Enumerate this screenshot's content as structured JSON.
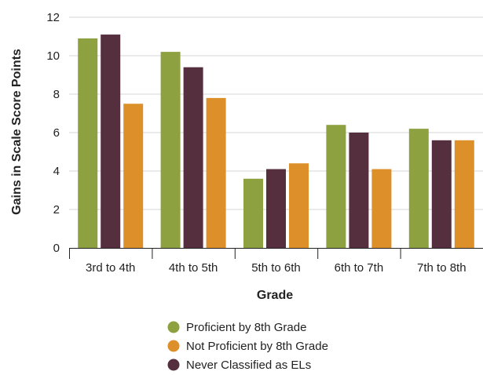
{
  "chart_data": {
    "type": "bar",
    "title": "",
    "xlabel": "Grade",
    "ylabel": "Gains in Scale Score Points",
    "ylim": [
      0,
      12
    ],
    "yticks": [
      0,
      2,
      4,
      6,
      8,
      10,
      12
    ],
    "grid": "horizontal",
    "legend_position": "bottom",
    "categories": [
      "3rd to 4th",
      "4th to 5th",
      "5th to 6th",
      "6th to 7th",
      "7th to 8th"
    ],
    "series": [
      {
        "name": "Proficient by 8th Grade",
        "color": "#8da141",
        "values": [
          10.9,
          10.2,
          3.6,
          6.4,
          6.2
        ]
      },
      {
        "name": "Never Classified as ELs",
        "color": "#552f3e",
        "values": [
          11.1,
          9.4,
          4.1,
          6.0,
          5.6
        ]
      },
      {
        "name": "Not Proficient by 8th Grade",
        "color": "#dd8f2a",
        "values": [
          7.5,
          7.8,
          4.4,
          4.1,
          5.6
        ]
      }
    ],
    "legend_order": [
      0,
      2,
      1
    ]
  }
}
